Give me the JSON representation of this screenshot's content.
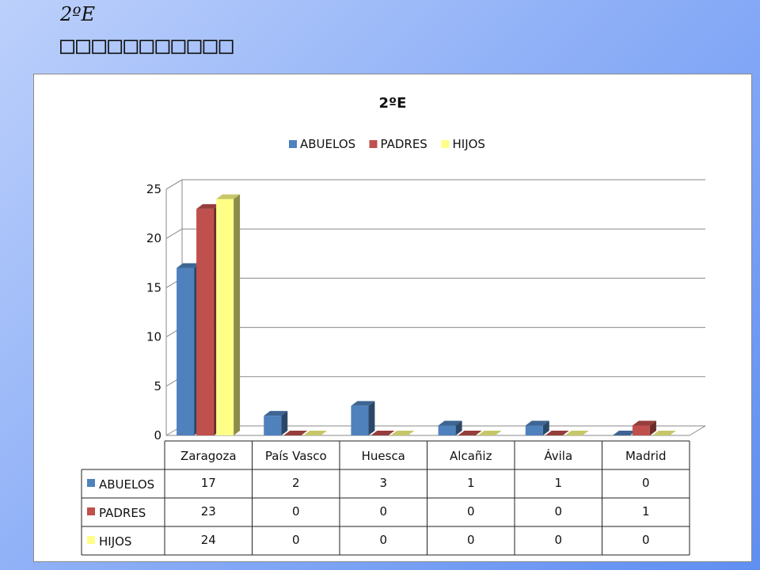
{
  "slide": {
    "title": "2ºE",
    "subtitle": "□□□□□□□□□□□"
  },
  "chart_data": {
    "type": "bar",
    "title": "2ºE",
    "xlabel": "",
    "ylabel": "",
    "ylim": [
      0,
      25
    ],
    "yticks": [
      0,
      5,
      10,
      15,
      20,
      25
    ],
    "grid": true,
    "legend_position": "top",
    "categories": [
      "Zaragoza",
      "País Vasco",
      "Huesca",
      "Alcañiz",
      "Ávila",
      "Madrid"
    ],
    "series": [
      {
        "name": "ABUELOS",
        "color": "#4f81bd",
        "values": [
          17,
          2,
          3,
          1,
          1,
          0
        ]
      },
      {
        "name": "PADRES",
        "color": "#c0504d",
        "values": [
          23,
          0,
          0,
          0,
          0,
          1
        ]
      },
      {
        "name": "HIJOS",
        "color": "#ffff88",
        "values": [
          24,
          0,
          0,
          0,
          0,
          0
        ]
      }
    ],
    "data_table": true
  }
}
